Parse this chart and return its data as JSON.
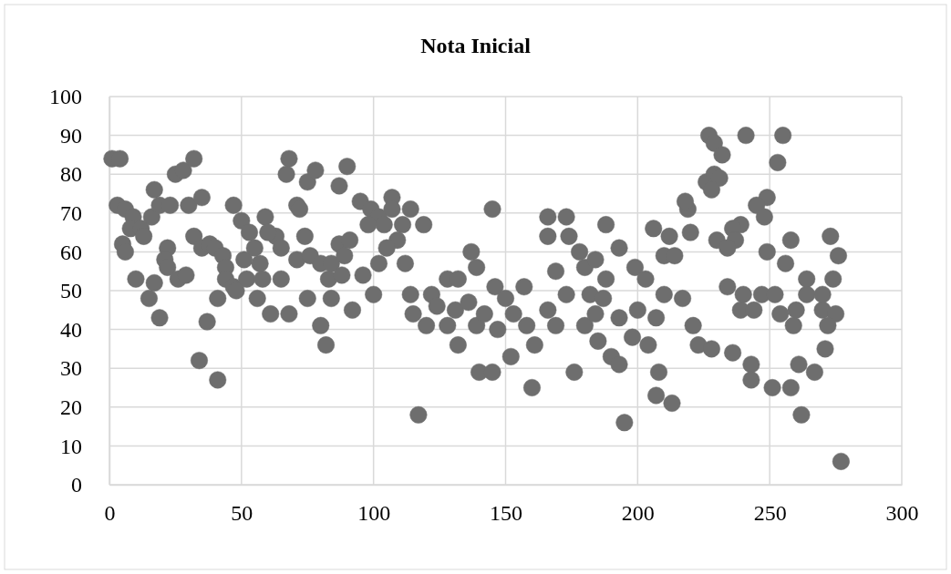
{
  "chart_data": {
    "type": "scatter",
    "title": "Nota Inicial",
    "x": [
      1,
      4,
      3,
      6,
      9,
      8,
      12,
      13,
      16,
      17,
      19,
      23,
      30,
      35,
      25,
      28,
      32,
      5,
      6,
      10,
      17,
      15,
      19,
      22,
      21,
      22,
      26,
      29,
      32,
      35,
      38,
      40,
      43,
      44,
      44,
      47,
      41,
      37,
      34,
      41,
      47,
      50,
      51,
      59,
      53,
      55,
      57,
      52,
      58,
      48,
      56,
      65,
      63,
      60,
      65,
      71,
      74,
      76,
      80,
      84,
      61,
      68,
      75,
      84,
      92,
      80,
      82,
      68,
      67,
      75,
      78,
      90,
      87,
      71,
      72,
      87,
      91,
      89,
      83,
      88,
      96,
      100,
      95,
      99,
      102,
      98,
      104,
      107,
      107,
      114,
      111,
      119,
      109,
      105,
      102,
      112,
      117,
      114,
      115,
      122,
      120,
      124,
      128,
      132,
      131,
      132,
      128,
      137,
      139,
      136,
      140,
      139,
      145,
      146,
      157,
      142,
      150,
      153,
      166,
      158,
      147,
      169,
      161,
      152,
      145,
      160,
      176,
      169,
      173,
      166,
      173,
      166,
      174,
      178,
      180,
      184,
      188,
      193,
      188,
      182,
      187,
      180,
      184,
      185,
      193,
      190,
      193,
      200,
      207,
      198,
      204,
      195,
      199,
      203,
      206,
      212,
      210,
      214,
      210,
      217,
      221,
      223,
      208,
      207,
      213,
      219,
      218,
      226,
      229,
      227,
      229,
      220,
      230,
      241,
      255,
      232,
      253,
      231,
      228,
      249,
      245,
      248,
      239,
      236,
      237,
      234,
      258,
      249,
      256,
      273,
      276,
      234,
      240,
      239,
      244,
      247,
      252,
      254,
      259,
      260,
      264,
      270,
      264,
      274,
      270,
      275,
      272,
      228,
      236,
      243,
      243,
      251,
      258,
      261,
      267,
      271,
      262,
      277
    ],
    "values": [
      84,
      84,
      72,
      71,
      69,
      66,
      66,
      64,
      69,
      76,
      72,
      72,
      72,
      74,
      80,
      81,
      84,
      62,
      60,
      53,
      52,
      48,
      43,
      61,
      58,
      56,
      53,
      54,
      64,
      61,
      62,
      61,
      59,
      56,
      53,
      51,
      48,
      42,
      32,
      27,
      72,
      68,
      58,
      69,
      65,
      61,
      57,
      53,
      53,
      50,
      48,
      53,
      64,
      65,
      61,
      58,
      64,
      59,
      57,
      57,
      44,
      44,
      48,
      48,
      45,
      41,
      36,
      84,
      80,
      78,
      81,
      82,
      77,
      72,
      71,
      62,
      63,
      59,
      53,
      54,
      54,
      49,
      73,
      71,
      69,
      67,
      67,
      74,
      71,
      71,
      67,
      67,
      63,
      61,
      57,
      57,
      18,
      49,
      44,
      49,
      41,
      46,
      53,
      53,
      45,
      36,
      41,
      60,
      56,
      47,
      29,
      41,
      71,
      51,
      51,
      44,
      48,
      44,
      45,
      41,
      40,
      41,
      36,
      33,
      29,
      25,
      29,
      55,
      49,
      69,
      69,
      64,
      64,
      60,
      56,
      58,
      67,
      61,
      53,
      49,
      48,
      41,
      44,
      37,
      43,
      33,
      31,
      45,
      43,
      38,
      36,
      16,
      56,
      53,
      66,
      64,
      59,
      59,
      49,
      48,
      41,
      36,
      29,
      23,
      21,
      71,
      73,
      78,
      80,
      90,
      88,
      65,
      63,
      90,
      90,
      85,
      83,
      79,
      76,
      74,
      72,
      69,
      67,
      66,
      63,
      61,
      63,
      60,
      57,
      64,
      59,
      51,
      49,
      45,
      45,
      49,
      49,
      44,
      41,
      45,
      53,
      49,
      49,
      53,
      45,
      44,
      41,
      35,
      34,
      31,
      27,
      25,
      25,
      31,
      29,
      35,
      18,
      6
    ],
    "color": "#6e6e6e",
    "marker": "circle",
    "xlim": [
      0,
      300
    ],
    "xticks": [
      0,
      50,
      100,
      150,
      200,
      250,
      300
    ],
    "ylim": [
      0,
      100
    ],
    "yticks": [
      0,
      10,
      20,
      30,
      40,
      50,
      60,
      70,
      80,
      90,
      100
    ],
    "grid": true
  }
}
